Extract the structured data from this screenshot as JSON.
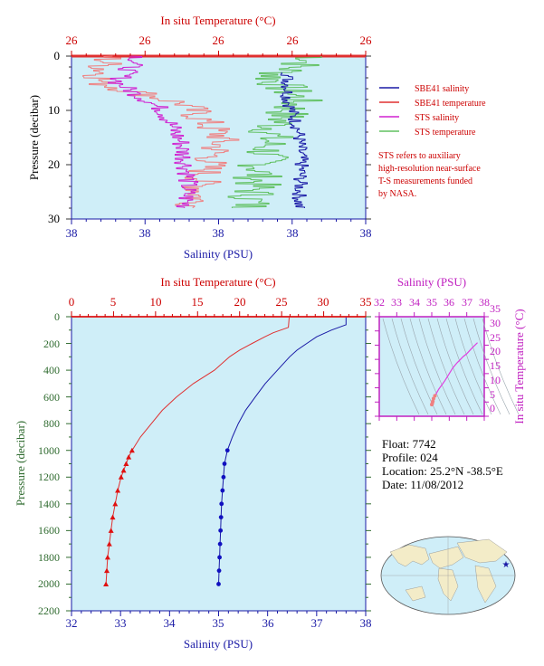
{
  "top_panel": {
    "title": "In situ Temperature (°C)",
    "xlabel": "Salinity (PSU)",
    "ylabel": "Pressure (decibar)",
    "temp_ticks": [
      "26",
      "26",
      "26",
      "26",
      "26"
    ],
    "sal_ticks": [
      "38",
      "38",
      "38",
      "38",
      "38"
    ],
    "pres_ticks": [
      "0",
      "10",
      "20",
      "30"
    ],
    "legend": [
      "SBE41 salinity",
      "SBE41 temperature",
      "STS salinity",
      "STS temperature"
    ],
    "note_lines": [
      "STS refers to auxiliary",
      "high-resolution near-surface",
      "T-S measurements funded",
      "by NASA."
    ]
  },
  "main_panel": {
    "title": "In situ Temperature (°C)",
    "xlabel": "Salinity (PSU)",
    "ylabel": "Pressure (decibar)",
    "temp_ticks": [
      "0",
      "5",
      "10",
      "15",
      "20",
      "25",
      "30",
      "35"
    ],
    "sal_ticks": [
      "32",
      "33",
      "34",
      "35",
      "36",
      "37",
      "38"
    ],
    "pres_ticks": [
      "0",
      "200",
      "400",
      "600",
      "800",
      "1000",
      "1200",
      "1400",
      "1600",
      "1800",
      "2000",
      "2200"
    ]
  },
  "ts_panel": {
    "title": "Salinity (PSU)",
    "ylabel": "In situ Temperature (°C)",
    "sal_ticks": [
      "32",
      "33",
      "34",
      "35",
      "36",
      "37",
      "38"
    ],
    "temp_ticks": [
      "0",
      "5",
      "10",
      "15",
      "20",
      "25",
      "30",
      "35"
    ]
  },
  "float_info": {
    "float_line": "Float:  7742",
    "profile_line": "Profile:  024",
    "location_line": "Location:  25.2°N  -38.5°E",
    "date_line": "Date:  11/08/2012"
  },
  "colors": {
    "panel_bg": "#cfeef8",
    "sbe_salinity": "#1a1aa6",
    "sbe_temperature": "#e03030",
    "sts_salinity": "#d020d0",
    "sts_temperature": "#60c060",
    "temp_axis": "#cc0000",
    "sal_axis": "#1a1aa6",
    "ts_axis": "#c020c0",
    "pressure_label": "#2f6b2f"
  },
  "chart_data": [
    {
      "type": "line",
      "panel": "main",
      "xlabel": "Salinity (PSU)",
      "x2label": "In situ Temperature (°C)",
      "ylabel": "Pressure (decibar)",
      "xlim_salinity": [
        32,
        38
      ],
      "xlim_temperature": [
        0,
        35
      ],
      "ylim_pressure": [
        2200,
        0
      ],
      "series": [
        {
          "name": "SBE41 temperature",
          "axis": "temperature",
          "pressure": [
            5,
            80,
            120,
            150,
            200,
            250,
            300,
            400,
            500,
            600,
            700,
            800,
            900,
            1000,
            1050,
            1100,
            1150,
            1200,
            1300,
            1400,
            1500,
            1600,
            1700,
            1800,
            1900,
            2000
          ],
          "values": [
            25.9,
            25.8,
            24.0,
            23.0,
            21.5,
            20.0,
            18.8,
            17.0,
            14.5,
            12.5,
            10.8,
            9.5,
            8.2,
            7.2,
            6.8,
            6.5,
            6.2,
            5.9,
            5.5,
            5.2,
            4.9,
            4.7,
            4.5,
            4.3,
            4.2,
            4.1
          ]
        },
        {
          "name": "SBE41 salinity",
          "axis": "salinity",
          "pressure": [
            5,
            30,
            60,
            100,
            150,
            200,
            250,
            300,
            400,
            500,
            600,
            700,
            800,
            900,
            1000,
            1100,
            1200,
            1300,
            1400,
            1500,
            1600,
            1700,
            1800,
            1900,
            2000
          ],
          "values": [
            37.6,
            37.6,
            37.6,
            37.3,
            37.0,
            36.8,
            36.6,
            36.45,
            36.2,
            35.95,
            35.75,
            35.55,
            35.4,
            35.28,
            35.18,
            35.12,
            35.1,
            35.08,
            35.06,
            35.05,
            35.04,
            35.03,
            35.02,
            35.01,
            35.0
          ]
        }
      ]
    },
    {
      "type": "scatter",
      "panel": "T-S diagram",
      "xlabel": "Salinity (PSU)",
      "ylabel": "In situ Temperature (°C)",
      "xlim": [
        32,
        38
      ],
      "ylim": [
        0,
        35
      ],
      "series": [
        {
          "x": [
            37.6,
            37.6,
            37.3,
            37.0,
            36.8,
            36.45,
            36.2,
            35.95,
            35.75,
            35.55,
            35.4,
            35.28,
            35.18,
            35.1,
            35.06,
            35.03,
            35.0
          ],
          "y": [
            25.9,
            25.8,
            24.0,
            22.0,
            21.0,
            18.8,
            17.0,
            14.5,
            12.5,
            10.8,
            9.5,
            8.2,
            7.2,
            6.2,
            5.2,
            4.5,
            4.1
          ]
        }
      ]
    }
  ]
}
